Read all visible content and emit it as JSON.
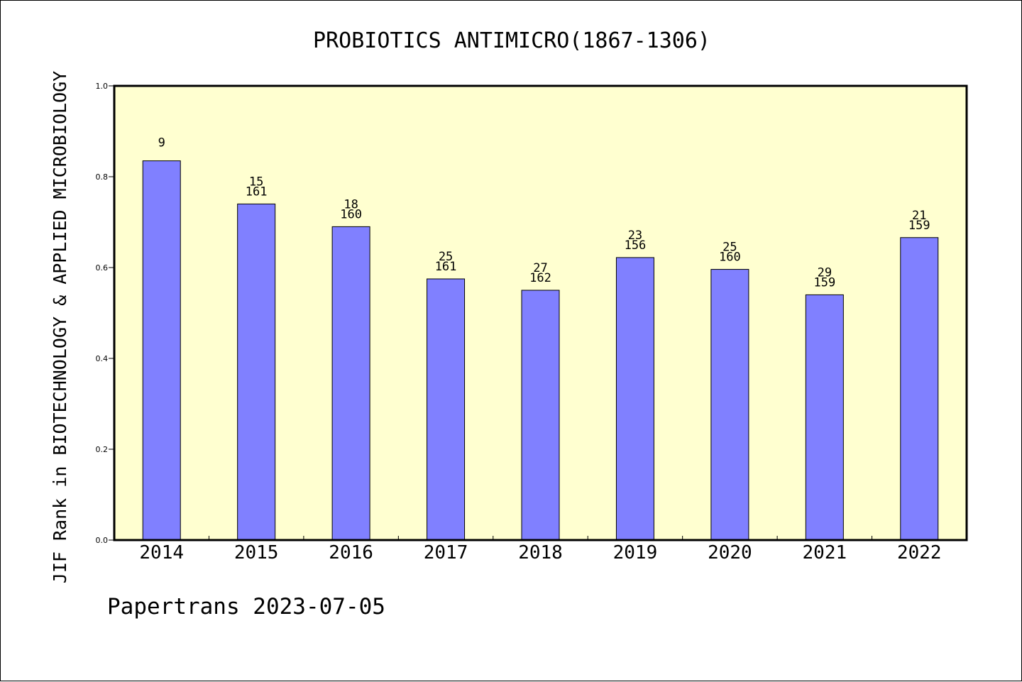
{
  "chart_data": {
    "type": "bar",
    "title": "PROBIOTICS ANTIMICRO(1867-1306)",
    "ylabel": "JIF Rank in BIOTECHNOLOGY & APPLIED MICROBIOLOGY",
    "xlabel": "",
    "footer": "Papertrans 2023-07-05",
    "ylim": [
      0,
      1.0
    ],
    "yticks": [
      "0.0",
      "0.2",
      "0.4",
      "0.6",
      "0.8",
      "1.0"
    ],
    "categories": [
      "2014",
      "2015",
      "2016",
      "2017",
      "2018",
      "2019",
      "2020",
      "2021",
      "2022"
    ],
    "values": [
      0.835,
      0.74,
      0.69,
      0.575,
      0.55,
      0.622,
      0.596,
      0.54,
      0.666
    ],
    "labels": [
      [
        "9"
      ],
      [
        "15",
        "161"
      ],
      [
        "18",
        "160"
      ],
      [
        "25",
        "161"
      ],
      [
        "27",
        "162"
      ],
      [
        "23",
        "156"
      ],
      [
        "25",
        "160"
      ],
      [
        "29",
        "159"
      ],
      [
        "21",
        "159"
      ]
    ],
    "colors": {
      "plot_background": "#ffffd0",
      "bar_fill": "#8080ff",
      "bar_stroke": "#000000"
    },
    "grid": false,
    "legend": "none"
  }
}
